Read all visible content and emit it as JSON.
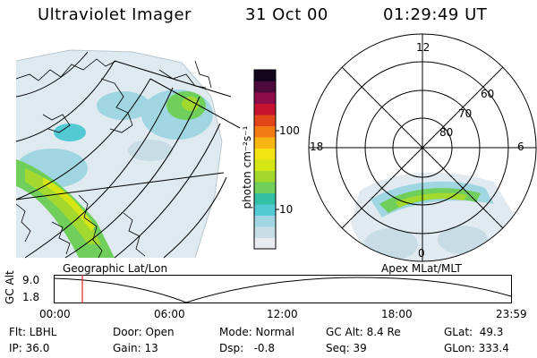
{
  "header": {
    "instrument": "Ultraviolet Imager",
    "date": "31 Oct 00",
    "time": "01:29:49 UT"
  },
  "colorbar": {
    "ticks": [
      "100",
      "10"
    ],
    "unit_label": "photon cm⁻²s⁻¹",
    "colors": [
      "#e8ecf0",
      "#c8dce6",
      "#9fd6e2",
      "#53c9d4",
      "#32bfa4",
      "#6fcf5a",
      "#a3d92e",
      "#d6e614",
      "#f2e311",
      "#f7b513",
      "#f27b12",
      "#e1461a",
      "#c4122f",
      "#8e0c4a",
      "#4b0a3a",
      "#14061f"
    ]
  },
  "geo_panel": {
    "label": "Geographic Lat/Lon"
  },
  "polar_panel": {
    "label": "Apex MLat/MLT",
    "mlt_labels": {
      "top": "12",
      "left": "18",
      "right": "6",
      "bottom": "0"
    },
    "lat_labels": [
      "60",
      "70",
      "80"
    ]
  },
  "altitude_plot": {
    "ylabel": "GC Alt",
    "yticks": [
      "9.0",
      "1.8"
    ],
    "xticks": [
      "00:00",
      "06:00",
      "12:00",
      "18:00",
      "23:59"
    ],
    "marker_time": "01:29:49"
  },
  "info": {
    "flt": "Flt: LBHL",
    "ip": "IP: 36.0",
    "door": "Door: Open",
    "gain": "Gain: 13",
    "mode": "Mode: Normal",
    "dsp": "Dsp:   -0.8",
    "gc_alt": "GC Alt: 8.4 Re",
    "seq": "Seq: 39",
    "glat": "GLat:  49.3",
    "glon": "GLon: 333.4"
  }
}
